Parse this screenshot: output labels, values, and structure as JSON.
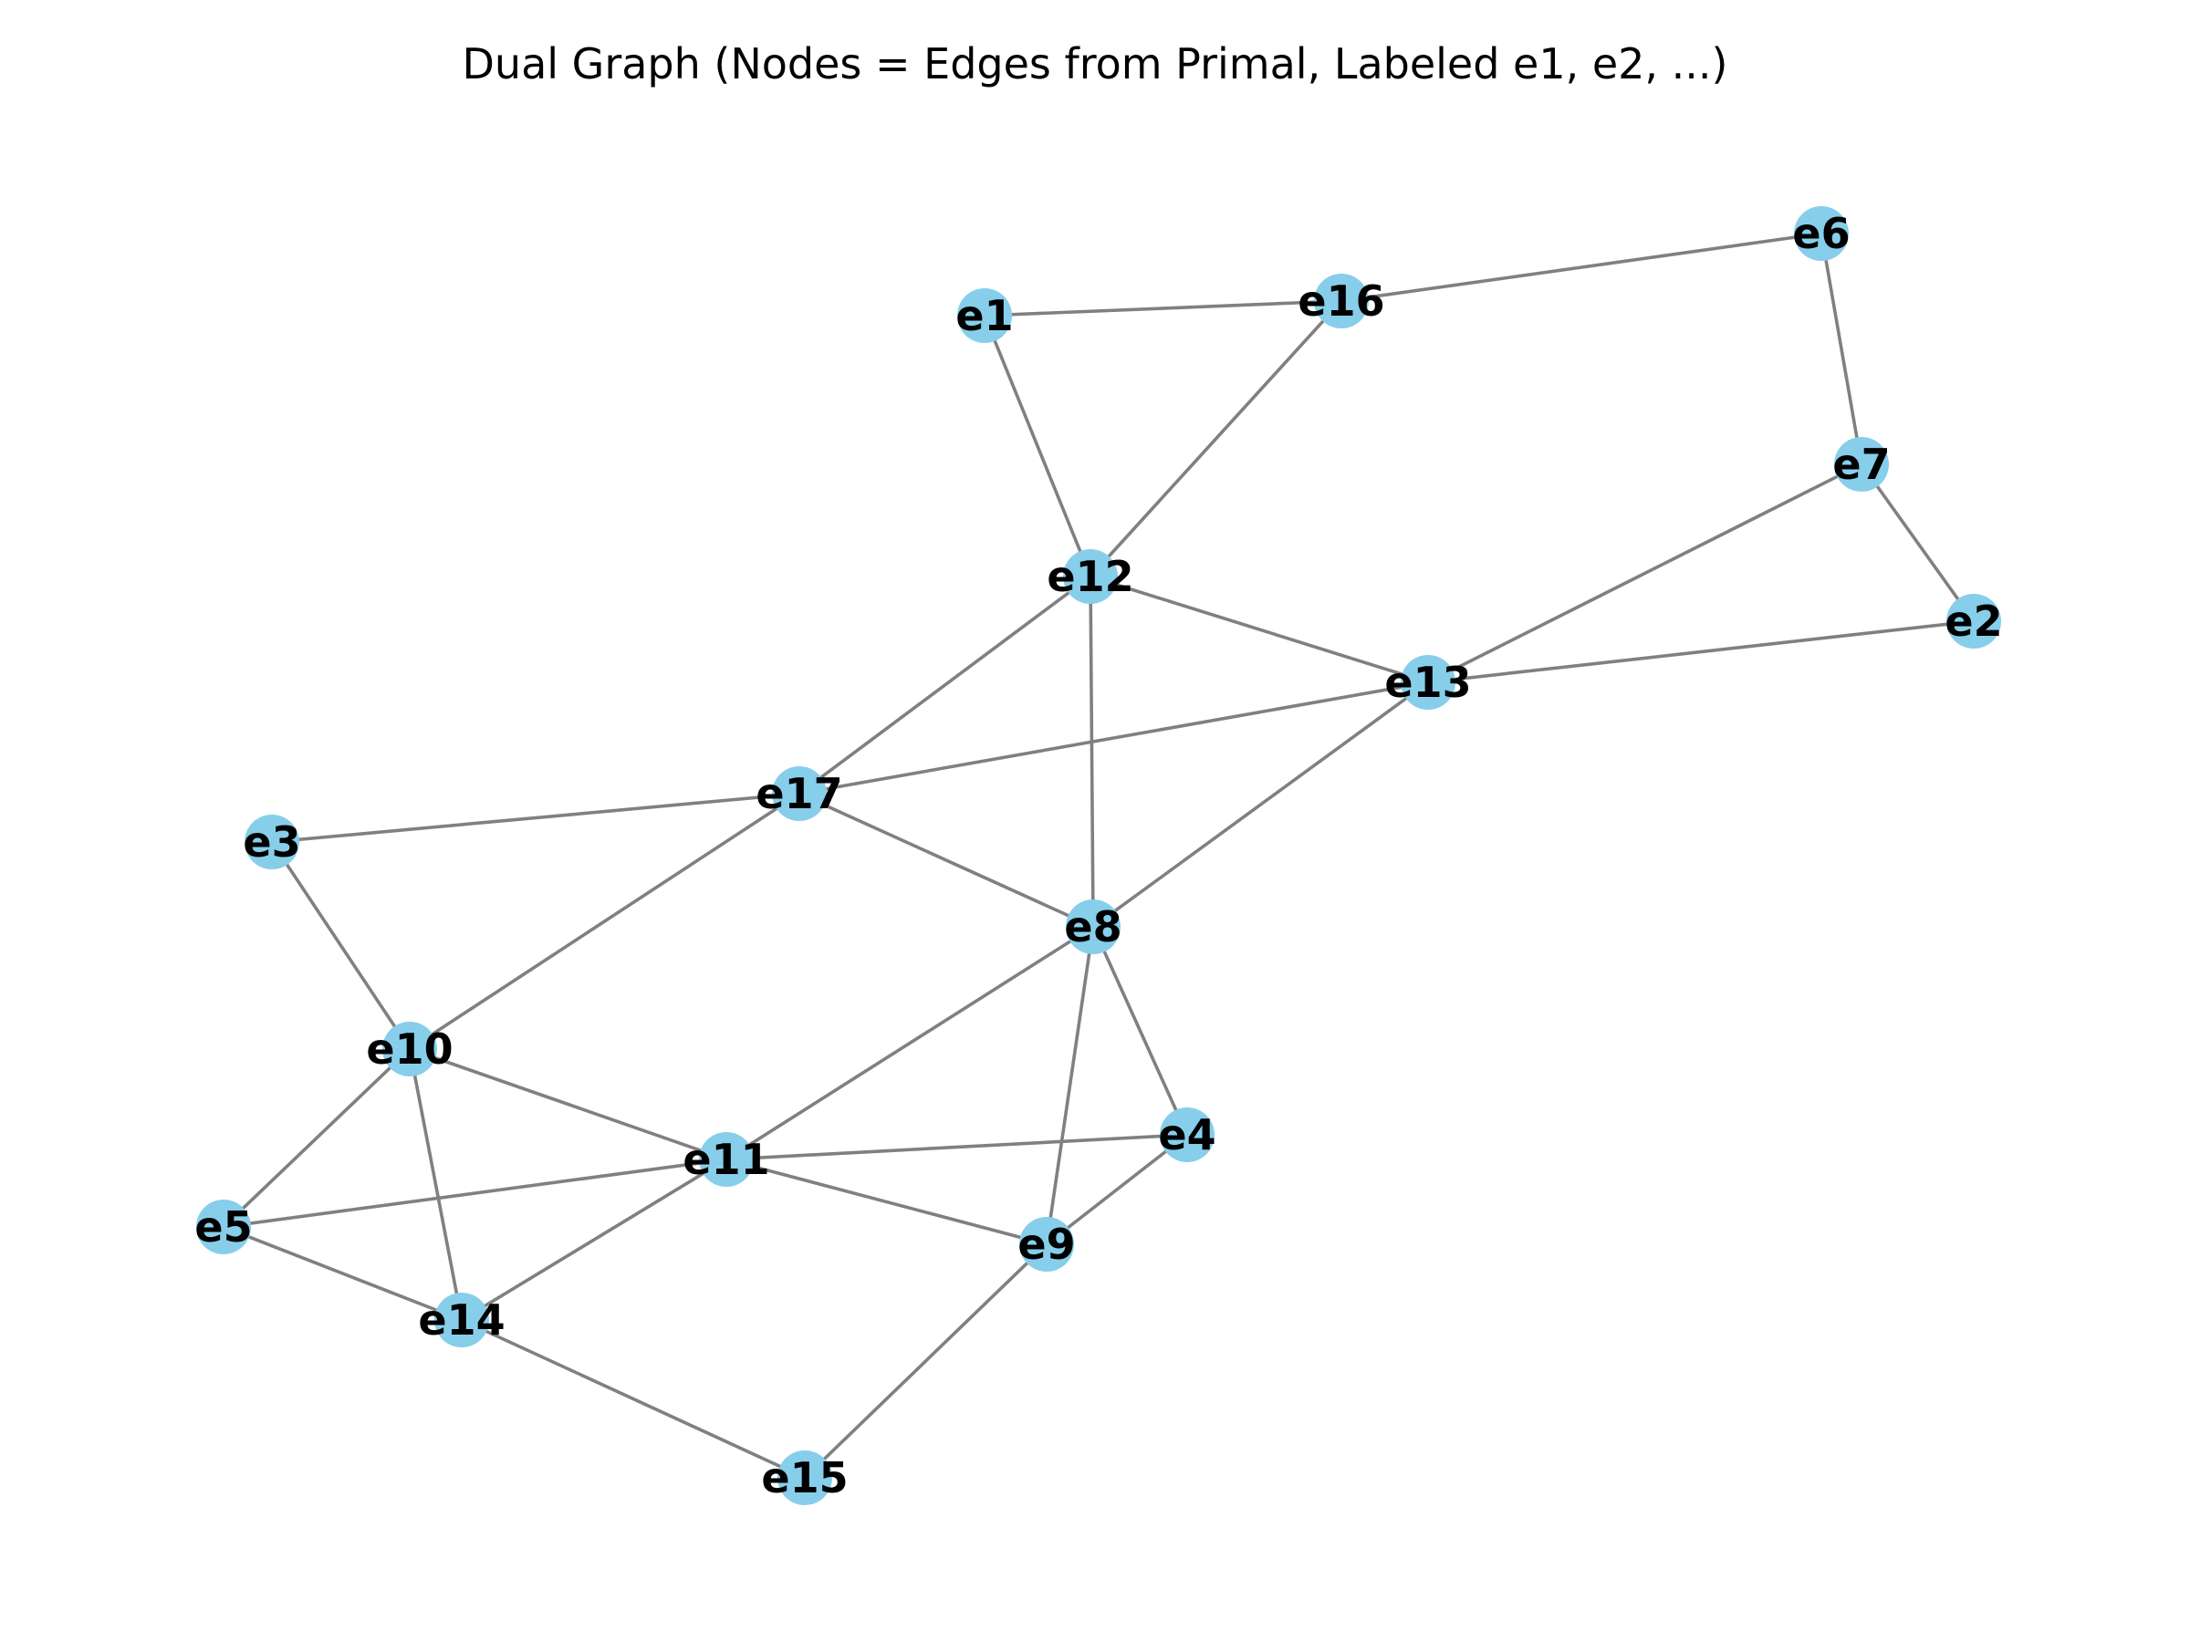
{
  "title": "Dual Graph (Nodes = Edges from Primal, Labeled e1, e2, ...)",
  "colors": {
    "node": "#87ceeb",
    "edge": "#808080",
    "label": "#000000",
    "background": "#ffffff"
  },
  "graph": {
    "nodes": [
      "e1",
      "e2",
      "e3",
      "e4",
      "e5",
      "e6",
      "e7",
      "e8",
      "e9",
      "e10",
      "e11",
      "e12",
      "e13",
      "e14",
      "e15",
      "e16",
      "e17"
    ],
    "edges": [
      [
        "e1",
        "e16"
      ],
      [
        "e1",
        "e12"
      ],
      [
        "e16",
        "e6"
      ],
      [
        "e16",
        "e12"
      ],
      [
        "e6",
        "e7"
      ],
      [
        "e7",
        "e2"
      ],
      [
        "e7",
        "e13"
      ],
      [
        "e12",
        "e13"
      ],
      [
        "e12",
        "e17"
      ],
      [
        "e12",
        "e8"
      ],
      [
        "e13",
        "e2"
      ],
      [
        "e13",
        "e17"
      ],
      [
        "e13",
        "e8"
      ],
      [
        "e17",
        "e3"
      ],
      [
        "e17",
        "e10"
      ],
      [
        "e17",
        "e8"
      ],
      [
        "e3",
        "e10"
      ],
      [
        "e8",
        "e11"
      ],
      [
        "e8",
        "e4"
      ],
      [
        "e8",
        "e9"
      ],
      [
        "e10",
        "e11"
      ],
      [
        "e10",
        "e5"
      ],
      [
        "e10",
        "e14"
      ],
      [
        "e11",
        "e4"
      ],
      [
        "e11",
        "e5"
      ],
      [
        "e11",
        "e9"
      ],
      [
        "e11",
        "e14"
      ],
      [
        "e4",
        "e9"
      ],
      [
        "e5",
        "e14"
      ],
      [
        "e14",
        "e15"
      ],
      [
        "e9",
        "e15"
      ]
    ]
  }
}
